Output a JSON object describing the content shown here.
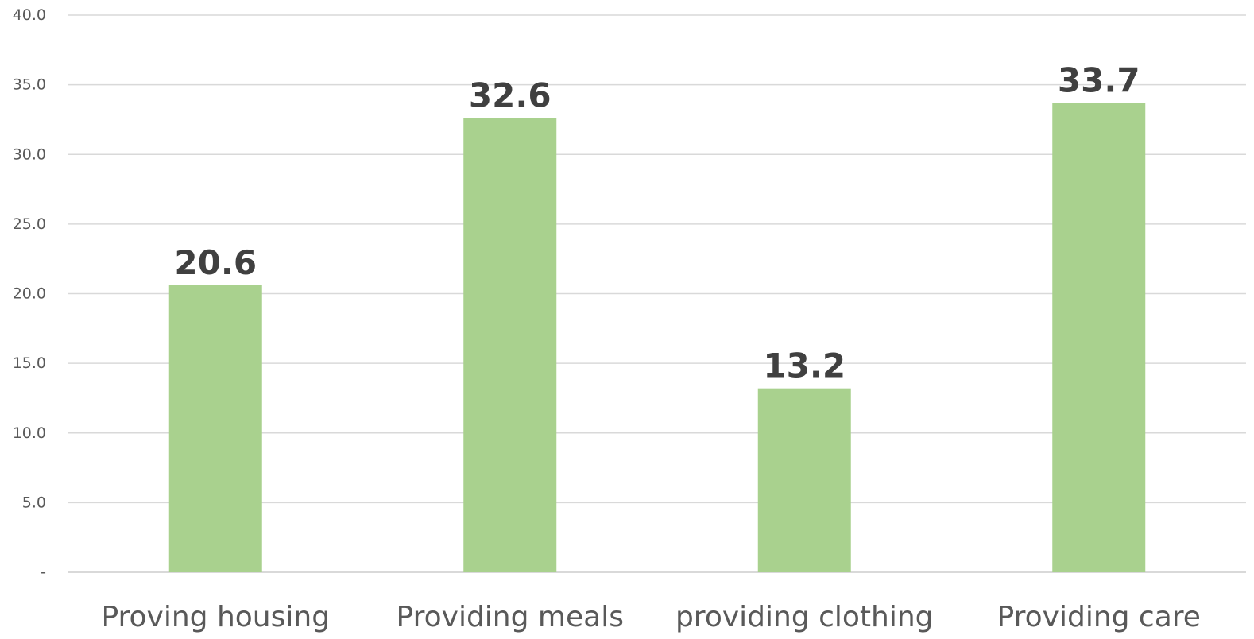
{
  "chart_data": {
    "type": "bar",
    "categories": [
      "Proving housing",
      "Providing meals",
      "providing clothing",
      "Providing care"
    ],
    "values": [
      20.6,
      32.6,
      13.2,
      33.7
    ],
    "data_labels": [
      "20.6",
      "32.6",
      "13.2",
      "33.7"
    ],
    "title": "",
    "xlabel": "",
    "ylabel": "",
    "ylim": [
      0,
      40
    ],
    "yticks": [
      0,
      5,
      10,
      15,
      20,
      25,
      30,
      35,
      40
    ],
    "ytick_labels": [
      "-",
      "5.0",
      "10.0",
      "15.0",
      "20.0",
      "25.0",
      "30.0",
      "35.0",
      "40.0"
    ],
    "grid": true,
    "legend": "none",
    "bar_color": "#a9d18e"
  }
}
